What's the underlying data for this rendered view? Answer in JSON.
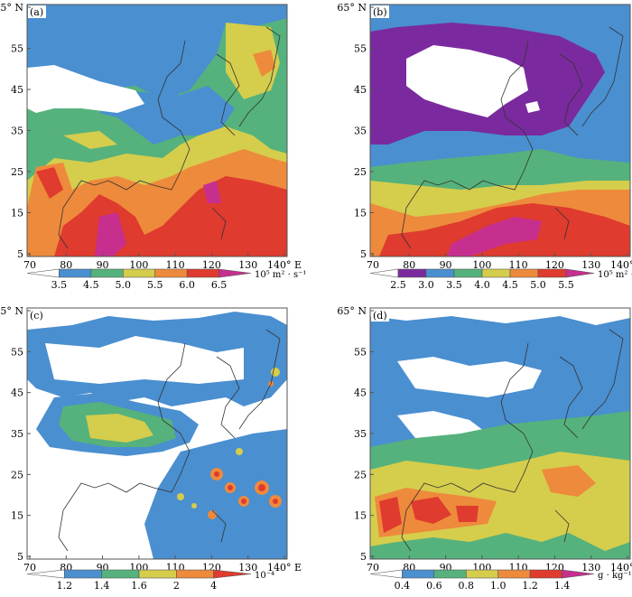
{
  "panels": [
    {
      "label": "(a)",
      "colorbar": {
        "ticks": [
          "3.5",
          "4.5",
          "5.0",
          "5.5",
          "6.0",
          "6.5"
        ],
        "colors": [
          "#ffffff",
          "#4a8fd0",
          "#55b27c",
          "#d5cd4c",
          "#ee8a3c",
          "#df3b2e",
          "#c72f8f"
        ],
        "unit": "10⁵ m² · s⁻¹"
      }
    },
    {
      "label": "(b)",
      "colorbar": {
        "ticks": [
          "2.5",
          "3.0",
          "3.5",
          "4.0",
          "4.5",
          "5.0",
          "5.5"
        ],
        "colors": [
          "#ffffff",
          "#7a2a9e",
          "#4a8fd0",
          "#55b27c",
          "#d5cd4c",
          "#ee8a3c",
          "#df3b2e",
          "#c72f8f"
        ],
        "unit": "10⁵ m² · s⁻¹"
      }
    },
    {
      "label": "(c)",
      "colorbar": {
        "ticks": [
          "1.2",
          "1.4",
          "1.6",
          "2",
          "4"
        ],
        "colors": [
          "#ffffff",
          "#4a8fd0",
          "#55b27c",
          "#d5cd4c",
          "#ee8a3c",
          "#df3b2e"
        ],
        "unit": "10⁻⁴"
      }
    },
    {
      "label": "(d)",
      "colorbar": {
        "ticks": [
          "0.4",
          "0.6",
          "0.8",
          "1.0",
          "1.2",
          "1.4"
        ],
        "colors": [
          "#ffffff",
          "#4a8fd0",
          "#55b27c",
          "#d5cd4c",
          "#ee8a3c",
          "#df3b2e",
          "#c72f8f"
        ],
        "unit": "g · kg⁻¹"
      }
    }
  ],
  "axes": {
    "x_ticks": [
      "70",
      "80",
      "90",
      "100",
      "110",
      "120",
      "130",
      "140° E"
    ],
    "y_ticks": [
      "65° N",
      "55",
      "45",
      "35",
      "25",
      "15",
      "5"
    ]
  }
}
